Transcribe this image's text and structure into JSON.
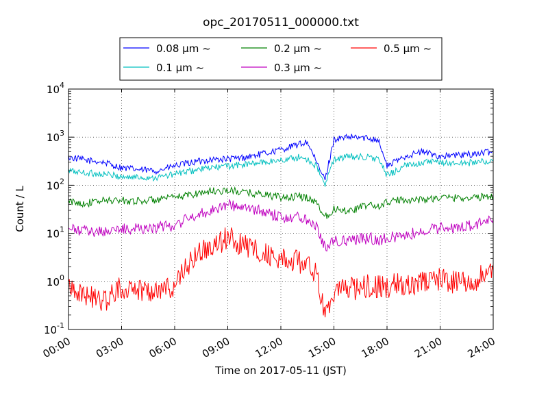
{
  "chart_data": {
    "type": "line",
    "title": "opc_20170511_000000.txt",
    "xlabel": "Time on 2017-05-11 (JST)",
    "ylabel": "Count / L",
    "y_scale": "log",
    "ylim": [
      0.1,
      10000
    ],
    "xlim": [
      "00:00",
      "24:00"
    ],
    "grid": true,
    "legend_position": "top-center",
    "x_ticks": [
      "00:00",
      "03:00",
      "06:00",
      "09:00",
      "12:00",
      "15:00",
      "18:00",
      "21:00",
      "24:00"
    ],
    "y_ticks": [
      {
        "base": "10",
        "exp": "-1",
        "value": 0.1
      },
      {
        "base": "10",
        "exp": "0",
        "value": 1
      },
      {
        "base": "10",
        "exp": "1",
        "value": 10
      },
      {
        "base": "10",
        "exp": "2",
        "value": 100
      },
      {
        "base": "10",
        "exp": "3",
        "value": 1000
      },
      {
        "base": "10",
        "exp": "4",
        "value": 10000
      }
    ],
    "x": [
      "00:00",
      "01:00",
      "02:00",
      "03:00",
      "04:00",
      "05:00",
      "06:00",
      "07:00",
      "08:00",
      "09:00",
      "10:00",
      "11:00",
      "12:00",
      "13:00",
      "13:30",
      "14:00",
      "14:30",
      "15:00",
      "16:00",
      "17:00",
      "17:30",
      "18:00",
      "19:00",
      "20:00",
      "21:00",
      "22:00",
      "23:00",
      "24:00"
    ],
    "series": [
      {
        "name": "0.08 μm ~",
        "color": "#0000ff",
        "values": [
          380,
          330,
          300,
          230,
          210,
          200,
          250,
          300,
          340,
          350,
          380,
          450,
          550,
          700,
          800,
          300,
          130,
          900,
          1000,
          950,
          900,
          250,
          400,
          500,
          400,
          420,
          450,
          500
        ]
      },
      {
        "name": "0.1 μm ~",
        "color": "#00bfbf",
        "values": [
          200,
          180,
          170,
          150,
          145,
          145,
          170,
          200,
          230,
          250,
          270,
          300,
          330,
          380,
          350,
          250,
          100,
          350,
          400,
          380,
          350,
          160,
          250,
          300,
          300,
          280,
          300,
          320
        ]
      },
      {
        "name": "0.2 μm ~",
        "color": "#008000",
        "values": [
          45,
          42,
          48,
          48,
          47,
          50,
          55,
          65,
          75,
          78,
          70,
          65,
          55,
          58,
          55,
          45,
          22,
          32,
          30,
          40,
          35,
          45,
          50,
          50,
          55,
          55,
          55,
          60
        ]
      },
      {
        "name": "0.3 μm ~",
        "color": "#bf00bf",
        "values": [
          12,
          11,
          11,
          12,
          13,
          13,
          15,
          22,
          30,
          40,
          33,
          28,
          22,
          22,
          20,
          15,
          5,
          7,
          7,
          8,
          7,
          8,
          9,
          11,
          13,
          13,
          15,
          20
        ]
      },
      {
        "name": "0.5 μm ~",
        "color": "#ff0000",
        "values": [
          0.9,
          0.5,
          0.4,
          0.75,
          0.7,
          0.65,
          0.8,
          3,
          5,
          8,
          5.5,
          4,
          2.8,
          2.5,
          2.2,
          1.3,
          0.25,
          0.6,
          0.7,
          0.8,
          0.8,
          0.8,
          0.9,
          1.0,
          1.1,
          0.9,
          1.1,
          1.7
        ]
      }
    ]
  }
}
